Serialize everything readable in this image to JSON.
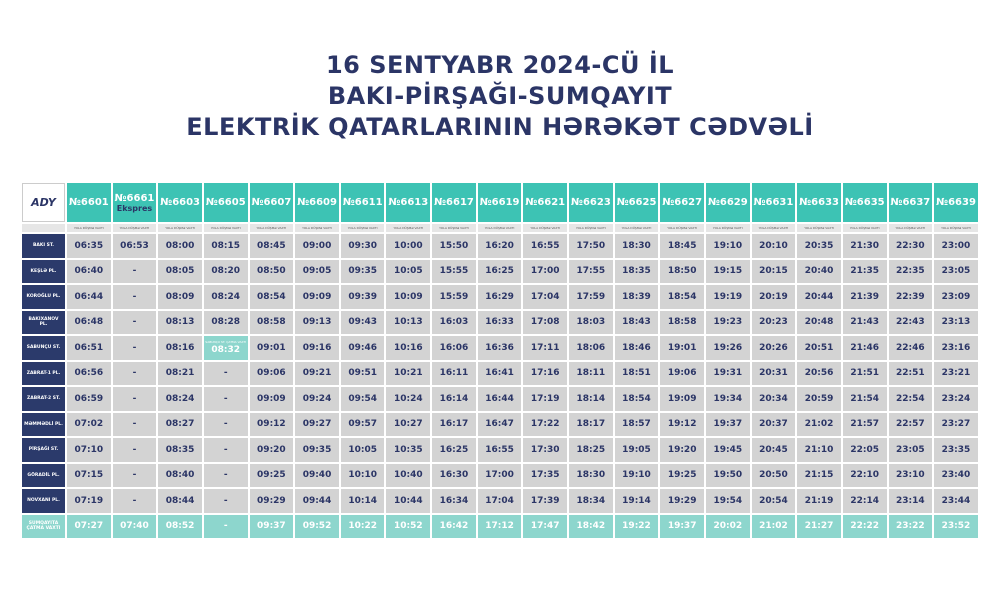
{
  "header": {
    "title": [
      "16 SENTYABR 2024-CÜ İL",
      "BAKI-PİRŞAĞI-SUMQAYIT",
      "ELEKTRİK QATARLARININ HƏRƏKƏT CƏDVƏLİ"
    ]
  },
  "logo": "ADY",
  "table": {
    "subheader": "YOLA DÜŞMƏ VAXTI",
    "trains": [
      {
        "number": "№6601"
      },
      {
        "number": "№6661",
        "note": "Ekspres"
      },
      {
        "number": "№6603"
      },
      {
        "number": "№6605"
      },
      {
        "number": "№6607"
      },
      {
        "number": "№6609"
      },
      {
        "number": "№6611"
      },
      {
        "number": "№6613"
      },
      {
        "number": "№6617"
      },
      {
        "number": "№6619"
      },
      {
        "number": "№6621"
      },
      {
        "number": "№6623"
      },
      {
        "number": "№6625"
      },
      {
        "number": "№6627"
      },
      {
        "number": "№6629"
      },
      {
        "number": "№6631"
      },
      {
        "number": "№6633"
      },
      {
        "number": "№6635"
      },
      {
        "number": "№6637"
      },
      {
        "number": "№6639"
      }
    ],
    "rows": [
      {
        "station": "BAKI ST.",
        "times": [
          "06:35",
          "06:53",
          "08:00",
          "08:15",
          "08:45",
          "09:00",
          "09:30",
          "10:00",
          "15:50",
          "16:20",
          "16:55",
          "17:50",
          "18:30",
          "18:45",
          "19:10",
          "20:10",
          "20:35",
          "21:30",
          "22:30",
          "23:00"
        ]
      },
      {
        "station": "KEŞLƏ PL.",
        "times": [
          "06:40",
          "-",
          "08:05",
          "08:20",
          "08:50",
          "09:05",
          "09:35",
          "10:05",
          "15:55",
          "16:25",
          "17:00",
          "17:55",
          "18:35",
          "18:50",
          "19:15",
          "20:15",
          "20:40",
          "21:35",
          "22:35",
          "23:05"
        ]
      },
      {
        "station": "KOROĞLU PL.",
        "times": [
          "06:44",
          "-",
          "08:09",
          "08:24",
          "08:54",
          "09:09",
          "09:39",
          "10:09",
          "15:59",
          "16:29",
          "17:04",
          "17:59",
          "18:39",
          "18:54",
          "19:19",
          "20:19",
          "20:44",
          "21:39",
          "22:39",
          "23:09"
        ]
      },
      {
        "station": "BAKIXANOV PL.",
        "times": [
          "06:48",
          "-",
          "08:13",
          "08:28",
          "08:58",
          "09:13",
          "09:43",
          "10:13",
          "16:03",
          "16:33",
          "17:08",
          "18:03",
          "18:43",
          "18:58",
          "19:23",
          "20:23",
          "20:48",
          "21:43",
          "22:43",
          "23:13"
        ]
      },
      {
        "station": "SABUNÇU ST.",
        "times": [
          "06:51",
          "-",
          "08:16",
          {
            "label": "SABUNÇU ST. ÇATMA VAXTI",
            "time": "08:32"
          },
          "09:01",
          "09:16",
          "09:46",
          "10:16",
          "16:06",
          "16:36",
          "17:11",
          "18:06",
          "18:46",
          "19:01",
          "19:26",
          "20:26",
          "20:51",
          "21:46",
          "22:46",
          "23:16"
        ]
      },
      {
        "station": "ZABRAT-1 PL.",
        "times": [
          "06:56",
          "-",
          "08:21",
          "-",
          "09:06",
          "09:21",
          "09:51",
          "10:21",
          "16:11",
          "16:41",
          "17:16",
          "18:11",
          "18:51",
          "19:06",
          "19:31",
          "20:31",
          "20:56",
          "21:51",
          "22:51",
          "23:21"
        ]
      },
      {
        "station": "ZABRAT-2 ST.",
        "times": [
          "06:59",
          "-",
          "08:24",
          "-",
          "09:09",
          "09:24",
          "09:54",
          "10:24",
          "16:14",
          "16:44",
          "17:19",
          "18:14",
          "18:54",
          "19:09",
          "19:34",
          "20:34",
          "20:59",
          "21:54",
          "22:54",
          "23:24"
        ]
      },
      {
        "station": "MƏMMƏDLİ PL.",
        "times": [
          "07:02",
          "-",
          "08:27",
          "-",
          "09:12",
          "09:27",
          "09:57",
          "10:27",
          "16:17",
          "16:47",
          "17:22",
          "18:17",
          "18:57",
          "19:12",
          "19:37",
          "20:37",
          "21:02",
          "21:57",
          "22:57",
          "23:27"
        ]
      },
      {
        "station": "PİRŞAĞI ST.",
        "times": [
          "07:10",
          "-",
          "08:35",
          "-",
          "09:20",
          "09:35",
          "10:05",
          "10:35",
          "16:25",
          "16:55",
          "17:30",
          "18:25",
          "19:05",
          "19:20",
          "19:45",
          "20:45",
          "21:10",
          "22:05",
          "23:05",
          "23:35"
        ]
      },
      {
        "station": "GÖRADİL PL.",
        "times": [
          "07:15",
          "-",
          "08:40",
          "-",
          "09:25",
          "09:40",
          "10:10",
          "10:40",
          "16:30",
          "17:00",
          "17:35",
          "18:30",
          "19:10",
          "19:25",
          "19:50",
          "20:50",
          "21:15",
          "22:10",
          "23:10",
          "23:40"
        ]
      },
      {
        "station": "NOVXANI PL.",
        "times": [
          "07:19",
          "-",
          "08:44",
          "-",
          "09:29",
          "09:44",
          "10:14",
          "10:44",
          "16:34",
          "17:04",
          "17:39",
          "18:34",
          "19:14",
          "19:29",
          "19:54",
          "20:54",
          "21:19",
          "22:14",
          "23:14",
          "23:44"
        ]
      },
      {
        "station": "SUMQAYITA ÇATMA VAXTI",
        "times": [
          "07:27",
          "07:40",
          "08:52",
          "-",
          "09:37",
          "09:52",
          "10:22",
          "10:52",
          "16:42",
          "17:12",
          "17:47",
          "18:42",
          "19:22",
          "19:37",
          "20:02",
          "21:02",
          "21:27",
          "22:22",
          "23:22",
          "23:52"
        ]
      }
    ]
  }
}
